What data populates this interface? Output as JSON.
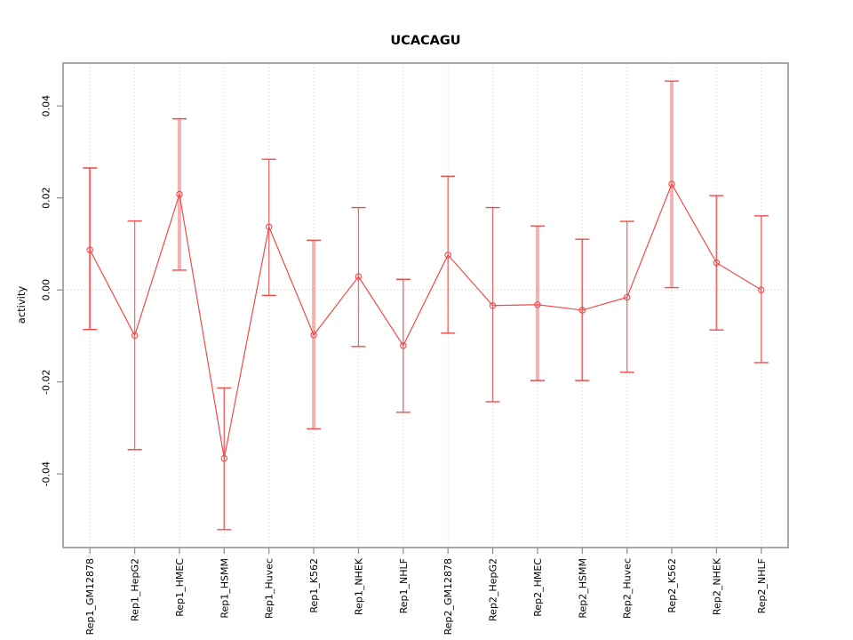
{
  "figure": {
    "background": "#ffffff"
  },
  "chart_data": {
    "type": "line",
    "title": "UCACAGU",
    "xlabel": "",
    "ylabel": "activity",
    "legend": "none",
    "categories": [
      "Rep1_GM12878",
      "Rep1_HepG2",
      "Rep1_HMEC",
      "Rep1_HSMM",
      "Rep1_Huvec",
      "Rep1_K562",
      "Rep1_NHEK",
      "Rep1_NHLF",
      "Rep2_GM12878",
      "Rep2_HepG2",
      "Rep2_HMEC",
      "Rep2_HSMM",
      "Rep2_Huvec",
      "Rep2_K562",
      "Rep2_NHEK",
      "Rep2_NHLF"
    ],
    "series": [
      {
        "name": "activity",
        "marker": "open-circle",
        "values": [
          0.0087,
          -0.0099,
          0.0208,
          -0.0366,
          0.0137,
          -0.0098,
          0.0029,
          -0.0121,
          0.0076,
          -0.0034,
          -0.0032,
          -0.0044,
          -0.0016,
          0.023,
          0.0059,
          0.0
        ],
        "upper": [
          0.0265,
          0.015,
          0.0372,
          -0.0213,
          0.0284,
          0.0108,
          0.0179,
          0.0023,
          0.0247,
          0.0179,
          0.0139,
          0.011,
          0.0149,
          0.0454,
          0.0205,
          0.0161
        ],
        "lower": [
          -0.0086,
          -0.0347,
          0.0043,
          -0.0521,
          -0.0012,
          -0.0302,
          -0.0123,
          -0.0266,
          -0.0094,
          -0.0243,
          -0.0197,
          -0.0197,
          -0.0179,
          0.0005,
          -0.0087,
          -0.0158
        ]
      }
    ],
    "yticks": [
      {
        "value": -0.04,
        "label": "-0.04"
      },
      {
        "value": -0.02,
        "label": "-0.02"
      },
      {
        "value": 0.0,
        "label": "0.00"
      },
      {
        "value": 0.02,
        "label": "0.02"
      },
      {
        "value": 0.04,
        "label": "0.04"
      }
    ],
    "ylim": [
      -0.056,
      0.0493
    ],
    "xlim": [
      0.4,
      16.6
    ],
    "grid": {
      "vertical": "dotted line at each category",
      "zero_line": "dotted horizontal at 0"
    },
    "bar_weights": [
      2.2,
      1.3,
      4,
      1.6,
      1.3,
      4,
      1.3,
      1.4,
      1.4,
      1.3,
      4,
      1.8,
      1.3,
      4,
      1.8,
      1.4
    ],
    "colors": {
      "series": "#ef4b4b",
      "errorbar_thin": "rgba(239,75,75,0.8)",
      "errorbar_thick": "rgba(239,75,75,0.42)",
      "grid": "#dcdcdc",
      "zero_line": "#d4d4d4",
      "box": "#8c8c8c",
      "tick": "#8c8c8c",
      "text": "#000000"
    }
  }
}
